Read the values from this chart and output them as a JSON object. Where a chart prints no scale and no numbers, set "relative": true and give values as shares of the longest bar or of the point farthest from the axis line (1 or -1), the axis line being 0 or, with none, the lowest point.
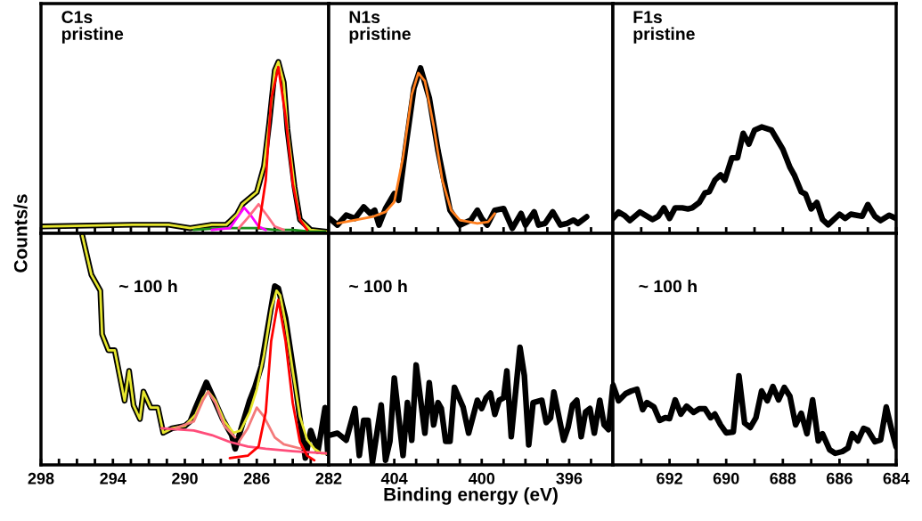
{
  "chart_data": [
    {
      "type": "line",
      "relative": true,
      "annotations": [
        "C1s\npristine"
      ],
      "xlim": [
        298,
        282
      ],
      "xticks": [
        {
          "value": 298,
          "label": null
        },
        {
          "value": 297,
          "label": null
        },
        {
          "value": 296,
          "label": null
        },
        {
          "value": 295,
          "label": null
        },
        {
          "value": 294,
          "label": null
        },
        {
          "value": 293,
          "label": null
        },
        {
          "value": 292,
          "label": null
        },
        {
          "value": 291,
          "label": null
        },
        {
          "value": 290,
          "label": null
        },
        {
          "value": 289,
          "label": null
        },
        {
          "value": 288,
          "label": null
        },
        {
          "value": 287,
          "label": null
        },
        {
          "value": 286,
          "label": null
        },
        {
          "value": 285,
          "label": null
        },
        {
          "value": 284,
          "label": null
        },
        {
          "value": 283,
          "label": null
        },
        {
          "value": 282,
          "label": null
        }
      ],
      "tick_labels": false,
      "series": [
        {
          "color": "#000000",
          "x": [
            298.0,
            292.9,
            290.9,
            289.7,
            288.5,
            287.7,
            287.1,
            286.8,
            286.0,
            285.6,
            285.3,
            285.0,
            284.8,
            284.5,
            284.3,
            283.9,
            283.6,
            283.0,
            282.1
          ],
          "values": [
            0.04,
            0.05,
            0.05,
            0.03,
            0.05,
            0.05,
            0.11,
            0.17,
            0.24,
            0.39,
            0.65,
            0.95,
            1,
            0.88,
            0.61,
            0.27,
            0.08,
            0.02,
            0.01
          ]
        },
        {
          "color": "#e6e62e",
          "x": [
            298.0,
            292.9,
            290.9,
            289.7,
            288.5,
            287.7,
            287.1,
            286.8,
            286.0,
            285.6,
            285.3,
            285.0,
            284.8,
            284.5,
            284.3,
            283.9,
            283.6,
            283.0,
            282.1
          ],
          "values": [
            0.04,
            0.05,
            0.05,
            0.03,
            0.05,
            0.05,
            0.11,
            0.17,
            0.24,
            0.39,
            0.65,
            0.95,
            1,
            0.88,
            0.61,
            0.27,
            0.08,
            0.02,
            0.01
          ]
        },
        {
          "color": "#1a8c1a",
          "x": [
            289.5,
            288,
            287,
            286,
            285,
            284,
            283,
            282.2
          ],
          "values": [
            0.02,
            0.03,
            0.03,
            0.03,
            0.02,
            0.02,
            0.01,
            0.01
          ]
        },
        {
          "color": "#ff00ff",
          "x": [
            288.5,
            287.5,
            287.1,
            286.7,
            286.3,
            285.9,
            285.5
          ],
          "values": [
            0.02,
            0.03,
            0.09,
            0.15,
            0.1,
            0.04,
            0.02
          ]
        },
        {
          "color": "#ff6b81",
          "x": [
            287.0,
            286.5,
            285.9,
            285.4,
            285.0,
            284.5
          ],
          "values": [
            0.03,
            0.09,
            0.17,
            0.1,
            0.04,
            0.02
          ]
        },
        {
          "color": "#ff0000",
          "x": [
            285.9,
            285.5,
            285.2,
            284.8,
            284.4,
            284.0,
            283.6,
            283.2
          ],
          "values": [
            0.03,
            0.31,
            0.78,
            0.97,
            0.68,
            0.29,
            0.08,
            0.02
          ]
        }
      ]
    },
    {
      "type": "line",
      "relative": true,
      "annotations": [
        "N1s\npristine"
      ],
      "xlim": [
        407,
        394
      ],
      "xticks": [
        {
          "value": 406,
          "label": null
        },
        {
          "value": 405,
          "label": null
        },
        {
          "value": 404,
          "label": null
        },
        {
          "value": 403,
          "label": null
        },
        {
          "value": 402,
          "label": null
        },
        {
          "value": 401,
          "label": null
        },
        {
          "value": 400,
          "label": null
        },
        {
          "value": 399,
          "label": null
        },
        {
          "value": 398,
          "label": null
        },
        {
          "value": 397,
          "label": null
        },
        {
          "value": 396,
          "label": null
        },
        {
          "value": 395,
          "label": null
        }
      ],
      "tick_labels": false,
      "series": [
        {
          "color": "#000000",
          "x": [
            406.95,
            406.6,
            406.2,
            405.8,
            405.4,
            405.1,
            404.9,
            404.7,
            404.4,
            404.0,
            403.8,
            403.5,
            403.1,
            402.8,
            402.4,
            402.0,
            401.45,
            401.0,
            400.5,
            400.2,
            400.0,
            399.75,
            399.4,
            399.0,
            398.6,
            398.2,
            398.0,
            397.6,
            397.4,
            397.1,
            396.75,
            396.4,
            396.1,
            395.8,
            395.6,
            395.2
          ],
          "values": [
            0.09,
            0.05,
            0.11,
            0.09,
            0.16,
            0.12,
            0.14,
            0.05,
            0.15,
            0.24,
            0.2,
            0.5,
            0.88,
            1,
            0.82,
            0.5,
            0.14,
            0.05,
            0.08,
            0.14,
            0.09,
            0.05,
            0.14,
            0.15,
            0.03,
            0.12,
            0.05,
            0.13,
            0.05,
            0.06,
            0.13,
            0.05,
            0.06,
            0.08,
            0.06,
            0.1
          ]
        },
        {
          "color": "#ff7f1e",
          "x": [
            406.6,
            405.0,
            404.4,
            404.0,
            403.6,
            403.2,
            402.9,
            402.6,
            402.2,
            401.8,
            401.4,
            401.0,
            400.2,
            399.7,
            399.4
          ],
          "values": [
            0.06,
            0.1,
            0.13,
            0.19,
            0.46,
            0.84,
            0.97,
            0.92,
            0.65,
            0.32,
            0.14,
            0.08,
            0.06,
            0.07,
            0.12
          ]
        }
      ]
    },
    {
      "type": "line",
      "relative": true,
      "annotations": [
        "F1s\npristine"
      ],
      "xlim": [
        694,
        684
      ],
      "xticks": [
        {
          "value": 693,
          "label": null
        },
        {
          "value": 692,
          "label": null
        },
        {
          "value": 691,
          "label": null
        },
        {
          "value": 690,
          "label": null
        },
        {
          "value": 689,
          "label": null
        },
        {
          "value": 688,
          "label": null
        },
        {
          "value": 687,
          "label": null
        },
        {
          "value": 686,
          "label": null
        },
        {
          "value": 685,
          "label": null
        },
        {
          "value": 684,
          "label": null
        }
      ],
      "tick_labels": false,
      "series": [
        {
          "color": "#000000",
          "x": [
            694.0,
            693.8,
            693.6,
            693.4,
            693.05,
            692.6,
            692.4,
            692.2,
            692.0,
            691.8,
            691.55,
            691.35,
            691.2,
            690.95,
            690.75,
            690.6,
            690.4,
            690.2,
            690.05,
            689.8,
            689.6,
            689.4,
            689.2,
            689.0,
            688.75,
            688.4,
            688.0,
            687.75,
            687.6,
            687.35,
            687.2,
            687.0,
            686.8,
            686.6,
            686.4,
            686.0,
            685.8,
            685.6,
            685.2,
            685.0,
            684.75,
            684.55,
            684.25,
            684.0
          ],
          "values": [
            0.14,
            0.2,
            0.17,
            0.12,
            0.2,
            0.13,
            0.16,
            0.24,
            0.14,
            0.24,
            0.24,
            0.23,
            0.24,
            0.29,
            0.38,
            0.39,
            0.5,
            0.55,
            0.5,
            0.71,
            0.71,
            0.94,
            0.84,
            0.97,
            1,
            0.97,
            0.79,
            0.62,
            0.55,
            0.39,
            0.37,
            0.23,
            0.29,
            0.13,
            0.08,
            0.18,
            0.14,
            0.18,
            0.16,
            0.27,
            0.16,
            0.12,
            0.17,
            0.14
          ]
        }
      ]
    },
    {
      "type": "line",
      "relative": true,
      "ylabel": "Counts/s",
      "annotations": [
        "~ 100 h"
      ],
      "xlim": [
        298,
        282
      ],
      "xticks": [
        298,
        {
          "value": 297,
          "label": null
        },
        {
          "value": 296,
          "label": null
        },
        {
          "value": 295,
          "label": null
        },
        294,
        {
          "value": 293,
          "label": null
        },
        {
          "value": 292,
          "label": null
        },
        {
          "value": 291,
          "label": null
        },
        290,
        {
          "value": 289,
          "label": null
        },
        {
          "value": 288,
          "label": null
        },
        {
          "value": 287,
          "label": null
        },
        286,
        {
          "value": 285,
          "label": null
        },
        {
          "value": 284,
          "label": null
        },
        {
          "value": 283,
          "label": null
        },
        282
      ],
      "tick_labels": "x",
      "series": [
        {
          "color": "#000000",
          "x": [
            295.7,
            295.2,
            294.7,
            294.6,
            294.25,
            293.9,
            293.35,
            293.1,
            292.85,
            292.5,
            292.3,
            291.9,
            291.5,
            291.2,
            290.7,
            290.0,
            289.7,
            289.4,
            288.8,
            288.4,
            287.9,
            287.4,
            287.2,
            286.9,
            286.4,
            286.1,
            285.75,
            285.3,
            285.0,
            284.8,
            284.4,
            283.9,
            283.6,
            283.3,
            283.0,
            282.6,
            282.2,
            282.05
          ],
          "values": [
            1,
            0.83,
            0.76,
            0.57,
            0.5,
            0.5,
            0.28,
            0.41,
            0.26,
            0.2,
            0.32,
            0.25,
            0.25,
            0.14,
            0.16,
            0.17,
            0.19,
            0.25,
            0.36,
            0.29,
            0.2,
            0.13,
            0.07,
            0.15,
            0.28,
            0.34,
            0.43,
            0.64,
            0.78,
            0.77,
            0.64,
            0.38,
            0.2,
            0.03,
            0.15,
            0.06,
            0.25,
            0.05
          ]
        },
        {
          "color": "#e6e62e",
          "x": [
            295.7,
            295.2,
            294.7,
            294.6,
            294.25,
            293.9,
            293.35,
            293.1,
            292.85,
            292.5,
            292.3,
            291.9,
            291.5,
            291.2,
            290.7,
            290.0,
            289.4,
            289.0,
            288.7,
            288.3,
            287.8,
            287.3,
            286.9,
            286.4,
            286.0,
            285.6,
            285.2,
            284.9,
            284.7,
            284.4,
            284.0,
            283.6,
            283.2,
            282.8,
            282.4,
            282.1
          ],
          "values": [
            1,
            0.83,
            0.76,
            0.57,
            0.5,
            0.5,
            0.28,
            0.41,
            0.26,
            0.2,
            0.32,
            0.25,
            0.25,
            0.14,
            0.16,
            0.17,
            0.22,
            0.29,
            0.32,
            0.28,
            0.19,
            0.14,
            0.15,
            0.23,
            0.33,
            0.48,
            0.68,
            0.76,
            0.74,
            0.62,
            0.41,
            0.21,
            0.11,
            0.07,
            0.05,
            0.05
          ]
        },
        {
          "color": "#ff4d7a",
          "x": [
            291.3,
            289.5,
            288.5,
            287.5,
            286.5,
            285.5,
            284,
            282.1
          ],
          "values": [
            0.16,
            0.15,
            0.13,
            0.1,
            0.08,
            0.07,
            0.06,
            0.05
          ]
        },
        {
          "color": "#f47a7a",
          "x": [
            290.5,
            289.5,
            289.0,
            288.7,
            288.3,
            287.8,
            287.2
          ],
          "values": [
            0.16,
            0.19,
            0.28,
            0.32,
            0.27,
            0.17,
            0.12
          ]
        },
        {
          "color": "#f47a7a",
          "x": [
            287.0,
            286.5,
            286.0,
            285.6,
            285.0,
            284.5,
            283.5
          ],
          "values": [
            0.1,
            0.16,
            0.25,
            0.21,
            0.12,
            0.09,
            0.07
          ]
        },
        {
          "color": "#ff0000",
          "x": [
            287.5,
            286.5,
            285.9,
            285.5,
            285.2,
            284.8,
            284.4,
            284.0,
            283.6,
            283.2,
            282.8
          ],
          "values": [
            0.03,
            0.04,
            0.08,
            0.23,
            0.54,
            0.72,
            0.54,
            0.27,
            0.1,
            0.04,
            0.02
          ]
        }
      ]
    },
    {
      "type": "line",
      "relative": true,
      "xlabel": "Binding energy (eV)",
      "annotations": [
        "~ 100 h"
      ],
      "xlim": [
        407,
        394
      ],
      "xticks": [
        {
          "value": 406,
          "label": null
        },
        {
          "value": 405,
          "label": null
        },
        404,
        {
          "value": 403,
          "label": null
        },
        {
          "value": 402,
          "label": null
        },
        {
          "value": 401,
          "label": null
        },
        400,
        {
          "value": 399,
          "label": null
        },
        {
          "value": 398,
          "label": null
        },
        {
          "value": 397,
          "label": null
        },
        396,
        {
          "value": 395,
          "label": null
        }
      ],
      "tick_labels": "x",
      "series": [
        {
          "color": "#000000",
          "x": [
            407.0,
            406.6,
            406.2,
            405.8,
            405.6,
            405.4,
            405.2,
            405.0,
            404.6,
            404.4,
            404.2,
            404.0,
            403.6,
            403.4,
            403.2,
            403.0,
            402.6,
            402.4,
            402.2,
            402.0,
            401.85,
            401.65,
            401.45,
            401.25,
            400.85,
            400.6,
            400.2,
            400.0,
            399.8,
            399.6,
            399.4,
            399.2,
            399.0,
            398.85,
            398.65,
            398.25,
            398.05,
            397.85,
            397.65,
            397.25,
            397.05,
            396.85,
            396.7,
            396.25,
            396.05,
            395.85,
            395.65,
            395.45,
            395.25,
            395.05,
            394.85,
            394.6,
            394.4,
            394.2,
            394.0
          ],
          "values": [
            0.25,
            0.27,
            0.21,
            0.48,
            0.08,
            0.38,
            0.38,
            0.02,
            0.51,
            0.04,
            0.2,
            0.74,
            0.08,
            0.53,
            0.21,
            0.85,
            0.27,
            0.7,
            0.34,
            0.53,
            0.48,
            0.2,
            0.2,
            0.66,
            0.49,
            0.27,
            0.55,
            0.48,
            0.57,
            0.61,
            0.43,
            0.55,
            0.57,
            0.8,
            0.24,
            1,
            0.76,
            0.17,
            0.53,
            0.55,
            0.36,
            0.4,
            0.62,
            0.21,
            0.32,
            0.51,
            0.55,
            0.24,
            0.45,
            0.48,
            0.27,
            0.55,
            0.34,
            0.3,
            0.67
          ]
        }
      ]
    },
    {
      "type": "line",
      "relative": true,
      "annotations": [
        "~ 100 h"
      ],
      "xlim": [
        694,
        684
      ],
      "xticks": [
        {
          "value": 693,
          "label": null
        },
        692,
        {
          "value": 691,
          "label": null
        },
        690,
        {
          "value": 689,
          "label": null
        },
        688,
        {
          "value": 687,
          "label": null
        },
        686,
        {
          "value": 685,
          "label": null
        },
        684
      ],
      "tick_labels": "x",
      "series": [
        {
          "color": "#000000",
          "x": [
            694.0,
            693.8,
            693.55,
            693.35,
            693.15,
            692.95,
            692.8,
            692.55,
            692.35,
            692.15,
            692.0,
            691.8,
            691.6,
            691.4,
            691.15,
            690.95,
            690.75,
            690.55,
            690.4,
            690.2,
            690.0,
            689.75,
            689.55,
            689.35,
            689.15,
            688.95,
            688.75,
            688.55,
            688.35,
            688.15,
            687.95,
            687.75,
            687.55,
            687.35,
            687.15,
            686.95,
            686.75,
            686.6,
            686.35,
            686.15,
            685.9,
            685.7,
            685.55,
            685.35,
            685.15,
            685.0,
            684.75,
            684.55,
            684.35,
            684.15,
            684.0
          ],
          "values": [
            0.9,
            0.72,
            0.8,
            0.83,
            0.85,
            0.62,
            0.7,
            0.65,
            0.5,
            0.53,
            0.52,
            0.73,
            0.57,
            0.66,
            0.59,
            0.63,
            0.63,
            0.53,
            0.57,
            0.45,
            0.36,
            0.37,
            1,
            0.47,
            0.42,
            0.53,
            0.83,
            0.72,
            0.88,
            0.73,
            0.87,
            0.77,
            0.45,
            0.58,
            0.35,
            0.73,
            0.27,
            0.35,
            0.17,
            0.13,
            0.15,
            0.19,
            0.35,
            0.27,
            0.41,
            0.39,
            0.26,
            0.28,
            0.65,
            0.38,
            0.2
          ]
        }
      ]
    }
  ]
}
